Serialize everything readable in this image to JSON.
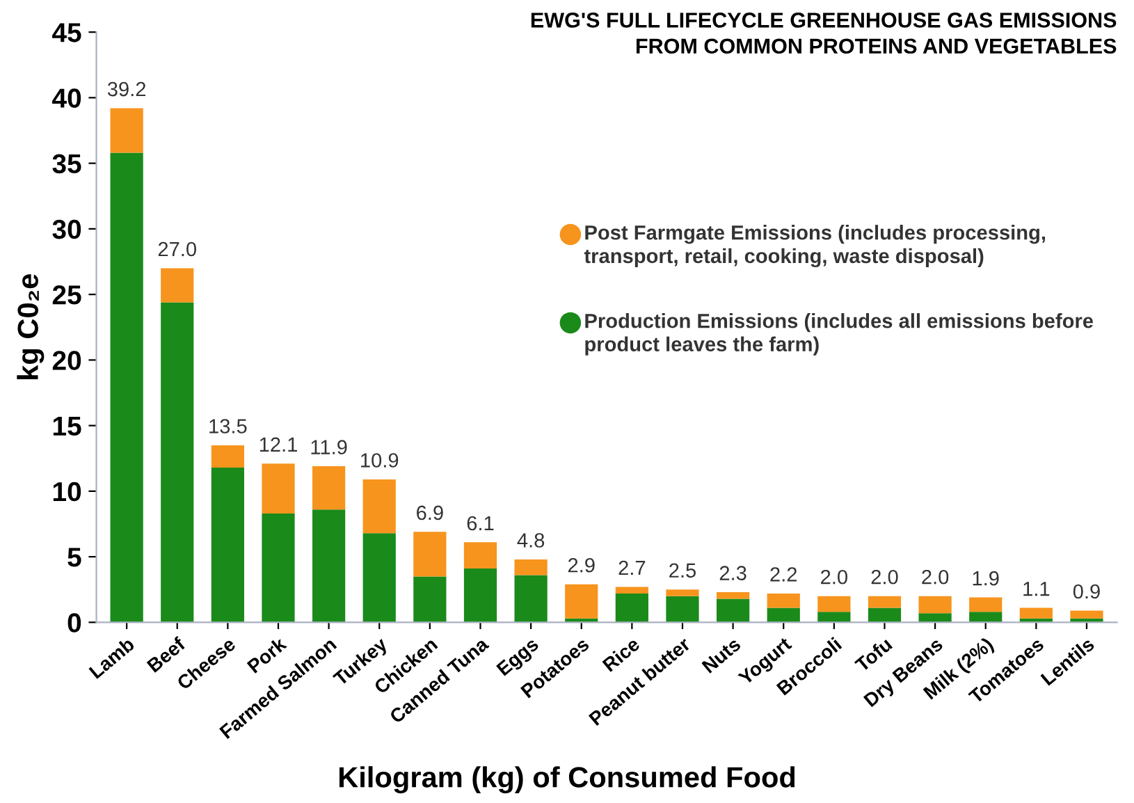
{
  "chart_data": {
    "type": "bar",
    "stacked": true,
    "title": "EWG'S FULL LIFECYCLE GREENHOUSE GAS EMISSIONS\nFROM COMMON PROTEINS AND VEGETABLES",
    "xlabel": "Kilogram (kg) of Consumed Food",
    "ylabel": "kg C0₂e",
    "categories": [
      "Lamb",
      "Beef",
      "Cheese",
      "Pork",
      "Farmed Salmon",
      "Turkey",
      "Chicken",
      "Canned Tuna",
      "Eggs",
      "Potatoes",
      "Rice",
      "Peanut butter",
      "Nuts",
      "Yogurt",
      "Broccoli",
      "Tofu",
      "Dry Beans",
      "Milk (2%)",
      "Tomatoes",
      "Lentils"
    ],
    "series": [
      {
        "name": "Production Emissions (includes all emissions before product leaves the farm)",
        "color": "#1a8a1a",
        "values": [
          35.8,
          24.4,
          11.8,
          8.3,
          8.6,
          6.8,
          3.5,
          4.1,
          3.6,
          0.3,
          2.2,
          2.0,
          1.8,
          1.1,
          0.8,
          1.1,
          0.7,
          0.8,
          0.3,
          0.3
        ]
      },
      {
        "name": "Post Farmgate Emissions (includes processing, transport, retail, cooking, waste disposal)",
        "color": "#f7941d",
        "values": [
          3.4,
          2.6,
          1.7,
          3.8,
          3.3,
          4.1,
          3.4,
          2.0,
          1.2,
          2.6,
          0.5,
          0.5,
          0.5,
          1.1,
          1.2,
          0.9,
          1.3,
          1.1,
          0.8,
          0.6
        ]
      }
    ],
    "totals": [
      "39.2",
      "27.0",
      "13.5",
      "12.1",
      "11.9",
      "10.9",
      "6.9",
      "6.1",
      "4.8",
      "2.9",
      "2.7",
      "2.5",
      "2.3",
      "2.2",
      "2.0",
      "2.0",
      "2.0",
      "1.9",
      "1.1",
      "0.9"
    ],
    "ylim": [
      0,
      45
    ],
    "yticks": [
      0,
      5,
      10,
      15,
      20,
      25,
      30,
      35,
      40,
      45
    ],
    "legend": "right"
  }
}
